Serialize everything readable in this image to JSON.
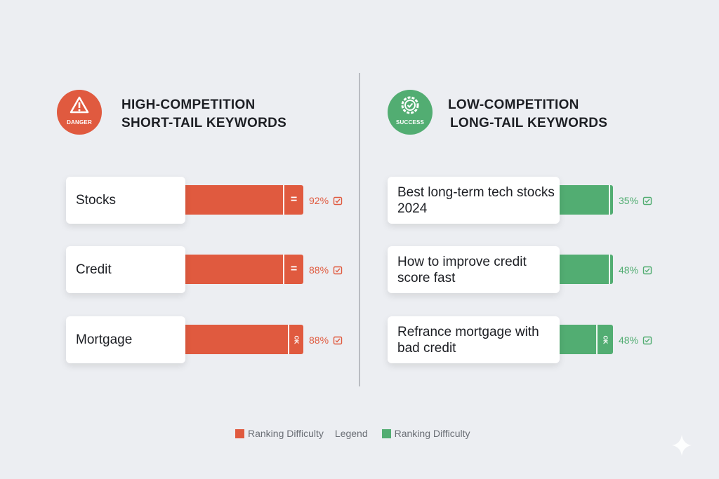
{
  "colors": {
    "high": "#e05a3f",
    "low": "#52ad72"
  },
  "left": {
    "badge": "DANGER",
    "badge_icon": "warning-triangle-icon",
    "title_line1": "HIGH-COMPETITION",
    "title_line2": "SHORT-TAIL KEYWORDS"
  },
  "right": {
    "badge": "SUCCESS",
    "badge_icon": "check-gear-icon",
    "title_line1": "LOW-COMPETITION",
    "title_line2": "LONG-TAIL KEYWORDS"
  },
  "legend": {
    "left": "Ranking Difficulty",
    "center": "Legend",
    "right": "Ranking Difficulty"
  },
  "chart_data": [
    {
      "type": "bar",
      "title": "HIGH-COMPETITION SHORT-TAIL KEYWORDS",
      "categories": [
        "Stocks",
        "Credit",
        "Mortgage"
      ],
      "values": [
        92,
        88,
        88
      ],
      "labels": [
        "92%",
        "88%",
        "88%"
      ],
      "segment_marks": [
        "=",
        "=",
        "OK"
      ],
      "color": "#e05a3f",
      "legend": "Ranking Difficulty"
    },
    {
      "type": "bar",
      "title": "LOW-COMPETITION LONG-TAIL KEYWORDS",
      "categories": [
        "Best long-term tech stocks 2024",
        "How to improve credit score fast",
        "Refrance mortgage with bad credit"
      ],
      "values": [
        35,
        48,
        48
      ],
      "labels": [
        "35%",
        "48%",
        "48%"
      ],
      "segment_marks": [
        "",
        "",
        "OK"
      ],
      "color": "#52ad72",
      "legend": "Ranking Difficulty"
    }
  ]
}
